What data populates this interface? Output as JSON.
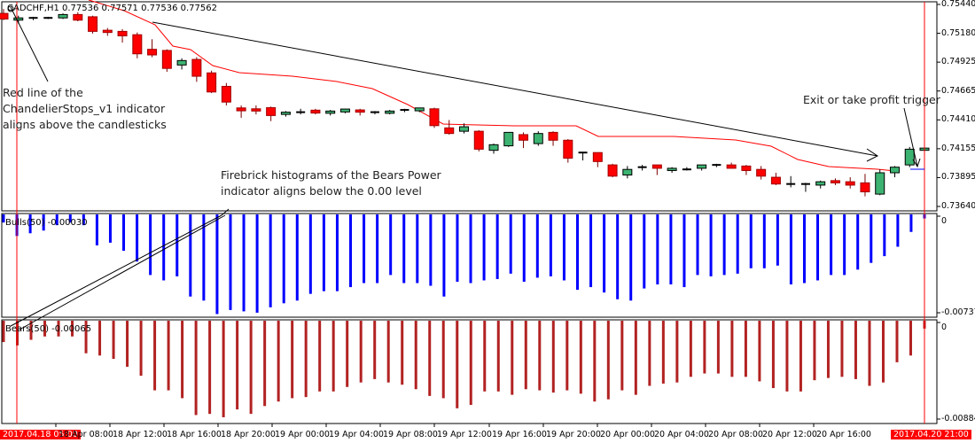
{
  "window": {
    "symbol_header": "CADCHF,H1  0.77536 0.77571 0.77536 0.77562"
  },
  "colors": {
    "bull_candle": "#3cb371",
    "bear_candle": "#ff0000",
    "doji": "#000000",
    "chandelier_line": "#ff0000",
    "bulls_power": "#0000ff",
    "bears_power": "#b22222",
    "vline": "#ff0000",
    "highlight_label_bg": "#ff0000"
  },
  "annotations": {
    "chandelier": [
      "Red line of the",
      "ChandelierStops_v1 indicator",
      "aligns above the candlesticks"
    ],
    "bears": [
      "Firebrick histograms of the Bears Power",
      "indicator aligns below the 0.00 level"
    ],
    "exit": "Exit or take profit trigger"
  },
  "subwindows": {
    "bulls": {
      "label": "Bulls(50) -0.00030",
      "ymax": "0",
      "ymin": "-0.00737"
    },
    "bears": {
      "label": "Bears(50) -0.00065",
      "ymax": "0",
      "ymin": "-0.00884"
    }
  },
  "yaxis": {
    "labels": [
      "0.75440",
      "0.75180",
      "0.74925",
      "0.74665",
      "0.74410",
      "0.74155",
      "0.73895",
      "0.73640"
    ]
  },
  "xaxis": {
    "labels": [
      "2017.04.18 05:00",
      "18 Apr 08:00",
      "18 Apr 12:00",
      "18 Apr 16:00",
      "18 Apr 20:00",
      "19 Apr 00:00",
      "19 Apr 04:00",
      "19 Apr 08:00",
      "19 Apr 12:00",
      "19 Apr 16:00",
      "19 Apr 20:00",
      "20 Apr 00:00",
      "20 Apr 04:00",
      "20 Apr 08:00",
      "20 Apr 12:00",
      "20 Apr 16:00",
      "2017.04.20 21:00"
    ]
  },
  "chart_data": [
    {
      "type": "candlestick",
      "title": "CADCHF,H1",
      "ohlc_header": [
        0.77536,
        0.77571,
        0.77536,
        0.77562
      ],
      "ylim": [
        0.7364,
        0.7544
      ],
      "yticks": [
        0.7544,
        0.7518,
        0.74925,
        0.74665,
        0.7441,
        0.74155,
        0.73895,
        0.7364
      ],
      "xlabel": "",
      "ylabel": "",
      "x_tick_labels": [
        "18 Apr 08:00",
        "18 Apr 12:00",
        "18 Apr 16:00",
        "18 Apr 20:00",
        "19 Apr 00:00",
        "19 Apr 04:00",
        "19 Apr 08:00",
        "19 Apr 12:00",
        "19 Apr 16:00",
        "19 Apr 20:00",
        "20 Apr 00:00",
        "20 Apr 04:00",
        "20 Apr 08:00",
        "20 Apr 12:00",
        "20 Apr 16:00"
      ],
      "candles_note": "approximate, read off the price axis; one candle per hour from 2017.04.18 ~04:00 to 2017.04.20 21:00",
      "candles": [
        [
          0.7536,
          0.754,
          0.753,
          0.7531
        ],
        [
          0.753,
          0.7534,
          0.7527,
          0.7532
        ],
        [
          0.7532,
          0.7533,
          0.753,
          0.7532
        ],
        [
          0.7532,
          0.7533,
          0.7531,
          0.7532
        ],
        [
          0.7532,
          0.7536,
          0.7531,
          0.7535
        ],
        [
          0.7535,
          0.7537,
          0.7529,
          0.753
        ],
        [
          0.7533,
          0.7534,
          0.7518,
          0.752
        ],
        [
          0.7521,
          0.7523,
          0.7516,
          0.7519
        ],
        [
          0.752,
          0.7522,
          0.751,
          0.7516
        ],
        [
          0.7517,
          0.7519,
          0.7496,
          0.75
        ],
        [
          0.7504,
          0.7513,
          0.7497,
          0.7499
        ],
        [
          0.7503,
          0.7504,
          0.7484,
          0.7487
        ],
        [
          0.749,
          0.7496,
          0.7486,
          0.7494
        ],
        [
          0.7495,
          0.7497,
          0.7475,
          0.748
        ],
        [
          0.7483,
          0.7485,
          0.7465,
          0.7466
        ],
        [
          0.7471,
          0.7474,
          0.7454,
          0.7457
        ],
        [
          0.7451,
          0.7454,
          0.7443,
          0.745
        ],
        [
          0.7451,
          0.7454,
          0.7446,
          0.7449
        ],
        [
          0.7452,
          0.7453,
          0.744,
          0.7445
        ],
        [
          0.7446,
          0.7449,
          0.7444,
          0.7448
        ],
        [
          0.7448,
          0.7451,
          0.7446,
          0.7448
        ],
        [
          0.7449,
          0.7451,
          0.7446,
          0.7448
        ],
        [
          0.7447,
          0.745,
          0.7445,
          0.7449
        ],
        [
          0.7449,
          0.7451,
          0.7447,
          0.745
        ],
        [
          0.745,
          0.7451,
          0.7445,
          0.7448
        ],
        [
          0.7448,
          0.7449,
          0.7446,
          0.7448
        ],
        [
          0.7447,
          0.745,
          0.7446,
          0.7449
        ],
        [
          0.745,
          0.7451,
          0.7448,
          0.745
        ],
        [
          0.745,
          0.7452,
          0.7448,
          0.7451
        ],
        [
          0.7451,
          0.7452,
          0.7434,
          0.7436
        ],
        [
          0.7434,
          0.7441,
          0.7428,
          0.7429
        ],
        [
          0.7431,
          0.7438,
          0.7429,
          0.7435
        ],
        [
          0.7431,
          0.7432,
          0.7413,
          0.7415
        ],
        [
          0.7414,
          0.742,
          0.7411,
          0.7419
        ],
        [
          0.7418,
          0.743,
          0.7417,
          0.743
        ],
        [
          0.7428,
          0.743,
          0.7416,
          0.7423
        ],
        [
          0.742,
          0.7431,
          0.7418,
          0.7429
        ],
        [
          0.743,
          0.7431,
          0.7418,
          0.7423
        ],
        [
          0.7423,
          0.7424,
          0.7403,
          0.7407
        ],
        [
          0.7412,
          0.7412,
          0.7405,
          0.7412
        ],
        [
          0.7412,
          0.7412,
          0.7399,
          0.7404
        ],
        [
          0.7401,
          0.7402,
          0.739,
          0.7391
        ],
        [
          0.7392,
          0.74,
          0.7389,
          0.7397
        ],
        [
          0.7399,
          0.7401,
          0.7396,
          0.7399
        ],
        [
          0.7401,
          0.7401,
          0.7392,
          0.7398
        ],
        [
          0.7396,
          0.7399,
          0.7394,
          0.7398
        ],
        [
          0.7397,
          0.7399,
          0.7396,
          0.7397
        ],
        [
          0.7398,
          0.74,
          0.7396,
          0.7401
        ],
        [
          0.7401,
          0.7402,
          0.7399,
          0.7401
        ],
        [
          0.7401,
          0.7403,
          0.7399,
          0.7398
        ],
        [
          0.74,
          0.7401,
          0.7392,
          0.7396
        ],
        [
          0.7397,
          0.74,
          0.7388,
          0.7391
        ],
        [
          0.739,
          0.7394,
          0.7383,
          0.7384
        ],
        [
          0.7384,
          0.7391,
          0.7381,
          0.7384
        ],
        [
          0.7384,
          0.7385,
          0.7377,
          0.7384
        ],
        [
          0.7383,
          0.7387,
          0.738,
          0.7386
        ],
        [
          0.7387,
          0.7389,
          0.7383,
          0.7385
        ],
        [
          0.7386,
          0.739,
          0.738,
          0.7383
        ],
        [
          0.7385,
          0.7393,
          0.7373,
          0.7377
        ],
        [
          0.7375,
          0.7397,
          0.7374,
          0.7394
        ],
        [
          0.7394,
          0.74,
          0.739,
          0.7399
        ],
        [
          0.7401,
          0.7417,
          0.7399,
          0.7415
        ],
        [
          0.7414,
          0.7418,
          0.7411,
          0.7416
        ]
      ],
      "series": [
        {
          "name": "ChandelierStops_v1",
          "color": "#ff0000",
          "points_note": "stepwise descending line above price, from ~0.7545 at 18 Apr 08:00 down to ~0.7400 at 20 Apr 19:00"
        }
      ]
    },
    {
      "type": "bar",
      "title": "Bulls(50) -0.00030",
      "ylim": [
        -0.00737,
        0
      ],
      "color": "#0000ff",
      "values": [
        -0.0006,
        -0.0016,
        -0.0014,
        -0.0012,
        -0.0008,
        -0.0006,
        -0.0008,
        -0.0023,
        -0.0021,
        -0.0027,
        -0.0035,
        -0.0045,
        -0.0049,
        -0.0046,
        -0.0061,
        -0.0064,
        -0.0074,
        -0.0071,
        -0.0072,
        -0.0073,
        -0.0069,
        -0.0066,
        -0.0064,
        -0.0059,
        -0.0057,
        -0.0057,
        -0.0054,
        -0.0051,
        -0.0051,
        -0.0045,
        -0.0051,
        -0.0051,
        -0.0053,
        -0.0061,
        -0.005,
        -0.0051,
        -0.0049,
        -0.0048,
        -0.0044,
        -0.005,
        -0.0047,
        -0.0046,
        -0.0049,
        -0.0056,
        -0.0054,
        -0.0058,
        -0.0063,
        -0.0064,
        -0.0055,
        -0.0052,
        -0.0052,
        -0.0054,
        -0.0045,
        -0.0046,
        -0.0045,
        -0.0044,
        -0.004,
        -0.004,
        -0.0038,
        -0.0052,
        -0.0051,
        -0.0049,
        -0.0045,
        -0.0045,
        -0.0041,
        -0.0036,
        -0.0031,
        -0.0024,
        -0.0013,
        -0.0003
      ]
    },
    {
      "type": "bar",
      "title": "Bears(50) -0.00065",
      "ylim": [
        -0.00884,
        0
      ],
      "color": "#b22222",
      "values": [
        -0.0019,
        -0.0022,
        -0.0017,
        -0.0014,
        -0.0014,
        -0.0014,
        -0.0029,
        -0.0031,
        -0.0034,
        -0.0041,
        -0.0049,
        -0.0062,
        -0.0062,
        -0.0069,
        -0.0084,
        -0.0083,
        -0.0086,
        -0.0079,
        -0.0083,
        -0.0076,
        -0.0072,
        -0.0069,
        -0.0068,
        -0.0063,
        -0.0063,
        -0.0059,
        -0.0055,
        -0.0052,
        -0.0055,
        -0.0057,
        -0.0061,
        -0.0067,
        -0.0069,
        -0.0078,
        -0.0075,
        -0.0063,
        -0.0063,
        -0.0066,
        -0.0061,
        -0.0062,
        -0.0064,
        -0.0062,
        -0.0065,
        -0.0072,
        -0.007,
        -0.0062,
        -0.0066,
        -0.0058,
        -0.0056,
        -0.0055,
        -0.005,
        -0.0047,
        -0.0047,
        -0.005,
        -0.005,
        -0.0054,
        -0.006,
        -0.0063,
        -0.0063,
        -0.0053,
        -0.0051,
        -0.005,
        -0.0052,
        -0.0058,
        -0.0055,
        -0.0037,
        -0.0031,
        -0.0007
      ]
    }
  ]
}
